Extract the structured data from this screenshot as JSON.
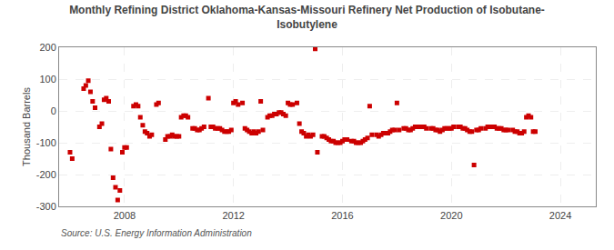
{
  "chart_data": {
    "type": "scatter",
    "title": "Monthly Refining District Oklahoma-Kansas-Missouri Refinery Net Production of Isobutane-\nIsobutylene",
    "ylabel": "Thousand Barrels",
    "source": "Source: U.S. Energy Information Administration",
    "color": "#cc0000",
    "marker": "square",
    "grid": true,
    "xlim": [
      2005.6,
      2025.3
    ],
    "xticks": [
      2008,
      2012,
      2016,
      2020,
      2024
    ],
    "ylim": [
      -300,
      200
    ],
    "yticks": [
      -300,
      -200,
      -100,
      0,
      100,
      200
    ],
    "x": [
      2006.0,
      2006.08,
      2006.5,
      2006.58,
      2006.67,
      2006.75,
      2006.83,
      2006.92,
      2007.08,
      2007.17,
      2007.25,
      2007.33,
      2007.42,
      2007.5,
      2007.58,
      2007.67,
      2007.75,
      2007.83,
      2007.92,
      2008.0,
      2008.08,
      2008.33,
      2008.42,
      2008.5,
      2008.58,
      2008.67,
      2008.75,
      2008.83,
      2008.92,
      2009.0,
      2009.17,
      2009.25,
      2009.5,
      2009.58,
      2009.67,
      2009.75,
      2009.83,
      2009.92,
      2010.0,
      2010.08,
      2010.17,
      2010.25,
      2010.33,
      2010.5,
      2010.58,
      2010.67,
      2010.75,
      2010.83,
      2010.92,
      2011.08,
      2011.17,
      2011.25,
      2011.33,
      2011.42,
      2011.5,
      2011.58,
      2011.67,
      2011.75,
      2011.83,
      2011.92,
      2012.0,
      2012.08,
      2012.17,
      2012.33,
      2012.42,
      2012.5,
      2012.58,
      2012.67,
      2012.75,
      2012.83,
      2012.92,
      2013.0,
      2013.08,
      2013.25,
      2013.33,
      2013.42,
      2013.5,
      2013.58,
      2013.67,
      2013.75,
      2013.83,
      2013.92,
      2014.0,
      2014.08,
      2014.17,
      2014.33,
      2014.42,
      2014.5,
      2014.58,
      2014.67,
      2014.75,
      2014.83,
      2014.92,
      2015.0,
      2015.08,
      2015.25,
      2015.33,
      2015.42,
      2015.5,
      2015.58,
      2015.67,
      2015.75,
      2015.83,
      2015.92,
      2016.0,
      2016.08,
      2016.17,
      2016.33,
      2016.42,
      2016.5,
      2016.58,
      2016.67,
      2016.75,
      2016.83,
      2016.92,
      2017.0,
      2017.08,
      2017.25,
      2017.33,
      2017.42,
      2017.5,
      2017.58,
      2017.67,
      2017.75,
      2017.83,
      2017.92,
      2018.0,
      2018.08,
      2018.25,
      2018.33,
      2018.42,
      2018.5,
      2018.58,
      2018.67,
      2018.75,
      2018.83,
      2018.92,
      2019.0,
      2019.08,
      2019.25,
      2019.33,
      2019.42,
      2019.5,
      2019.58,
      2019.67,
      2019.75,
      2019.83,
      2019.92,
      2020.0,
      2020.08,
      2020.25,
      2020.33,
      2020.42,
      2020.5,
      2020.58,
      2020.67,
      2020.75,
      2020.83,
      2020.92,
      2021.0,
      2021.08,
      2021.25,
      2021.33,
      2021.42,
      2021.5,
      2021.58,
      2021.67,
      2021.75,
      2021.83,
      2021.92,
      2022.0,
      2022.08,
      2022.25,
      2022.33,
      2022.42,
      2022.5,
      2022.58,
      2022.67,
      2022.75,
      2022.83,
      2022.92,
      2023.0,
      2023.08
    ],
    "values": [
      -130,
      -150,
      70,
      80,
      95,
      60,
      30,
      10,
      -50,
      -40,
      35,
      40,
      30,
      -120,
      -210,
      -240,
      -280,
      -250,
      -130,
      -115,
      -115,
      15,
      20,
      15,
      -20,
      -45,
      -65,
      -70,
      -80,
      -75,
      20,
      25,
      -90,
      -80,
      -80,
      -75,
      -80,
      -80,
      -80,
      -20,
      -15,
      -15,
      -20,
      -55,
      -55,
      -60,
      -60,
      -55,
      -50,
      40,
      -50,
      -50,
      -55,
      -55,
      -55,
      -60,
      -65,
      -65,
      -65,
      -60,
      25,
      30,
      20,
      25,
      -55,
      -60,
      -65,
      -70,
      -65,
      -70,
      -65,
      30,
      -60,
      -20,
      -15,
      -15,
      -10,
      -10,
      -5,
      -5,
      -10,
      -15,
      25,
      20,
      20,
      25,
      -40,
      -65,
      -70,
      -80,
      -75,
      -80,
      -75,
      195,
      -130,
      -80,
      -80,
      -85,
      -90,
      -95,
      -95,
      -100,
      -100,
      -100,
      -95,
      -90,
      -90,
      -95,
      -95,
      -100,
      -100,
      -100,
      -95,
      -90,
      -85,
      15,
      -75,
      -75,
      -80,
      -75,
      -70,
      -70,
      -70,
      -65,
      -60,
      -60,
      25,
      -60,
      -55,
      -55,
      -60,
      -60,
      -55,
      -50,
      -50,
      -50,
      -50,
      -50,
      -55,
      -55,
      -55,
      -60,
      -60,
      -65,
      -60,
      -55,
      -55,
      -55,
      -55,
      -50,
      -50,
      -50,
      -55,
      -55,
      -60,
      -65,
      -65,
      -170,
      -60,
      -60,
      -55,
      -55,
      -50,
      -50,
      -50,
      -50,
      -55,
      -55,
      -55,
      -60,
      -60,
      -60,
      -60,
      -65,
      -65,
      -70,
      -70,
      -65,
      -20,
      -15,
      -20,
      -65,
      -65
    ]
  }
}
